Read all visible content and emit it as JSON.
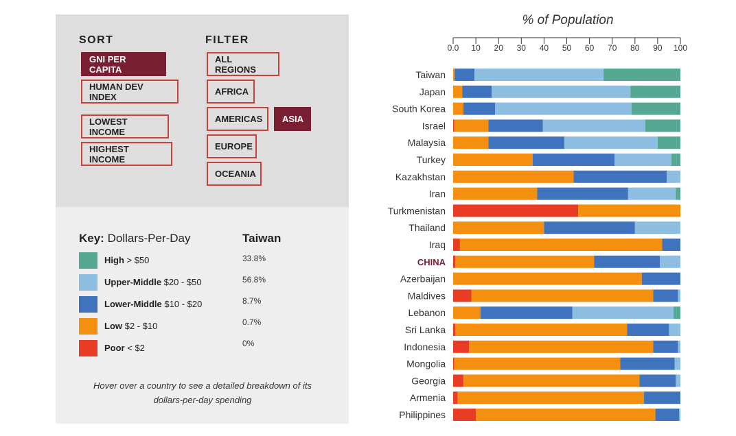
{
  "sort": {
    "heading": "SORT",
    "buttons": [
      {
        "label": "GNI PER CAPITA",
        "active": true
      },
      {
        "label": "HUMAN DEV INDEX",
        "active": false
      },
      {
        "label": "LOWEST INCOME",
        "active": false
      },
      {
        "label": "HIGHEST INCOME",
        "active": false
      }
    ]
  },
  "filter": {
    "heading": "FILTER",
    "buttons": [
      {
        "label": "ALL REGIONS",
        "active": false
      },
      {
        "label": "AFRICA",
        "active": false
      },
      {
        "label": "AMERICAS",
        "active": false
      },
      {
        "label": "ASIA",
        "active": true
      },
      {
        "label": "EUROPE",
        "active": false
      },
      {
        "label": "OCEANIA",
        "active": false
      }
    ]
  },
  "key": {
    "title_bold": "Key:",
    "title_rest": " Dollars-Per-Day",
    "selected_country": "Taiwan",
    "items": [
      {
        "name": "High",
        "range": " > $50",
        "color": "#55a891",
        "value": "33.8%"
      },
      {
        "name": "Upper-Middle",
        "range": " $20 - $50",
        "color": "#8dbde0",
        "value": "56.8%"
      },
      {
        "name": "Lower-Middle",
        "range": " $10 - $20",
        "color": "#3f73bd",
        "value": "8.7%"
      },
      {
        "name": "Low",
        "range": " $2 - $10",
        "color": "#f58f0f",
        "value": "0.7%"
      },
      {
        "name": "Poor",
        "range": " < $2",
        "color": "#e83d24",
        "value": "0%"
      }
    ],
    "hint": "Hover over a country to see a detailed breakdown of its dollars-per-day spending"
  },
  "chart_data": {
    "type": "bar",
    "orientation": "horizontal",
    "stacked": true,
    "title": "% of Population",
    "xlim": [
      0,
      100
    ],
    "xticks": [
      "0.0",
      "10",
      "20",
      "30",
      "40",
      "50",
      "60",
      "70",
      "80",
      "90",
      "100"
    ],
    "axis_position": "top",
    "highlight_category": "CHINA",
    "highlight_color": "#7a1f33",
    "categories": [
      "Taiwan",
      "Japan",
      "South Korea",
      "Israel",
      "Malaysia",
      "Turkey",
      "Kazakhstan",
      "Iran",
      "Turkmenistan",
      "Thailand",
      "Iraq",
      "CHINA",
      "Azerbaijan",
      "Maldives",
      "Lebanon",
      "Sri Lanka",
      "Indonesia",
      "Mongolia",
      "Georgia",
      "Armenia",
      "Philippines"
    ],
    "series": [
      {
        "name": "Poor",
        "color": "#e83d24",
        "values": [
          0,
          0,
          0,
          0.5,
          0,
          0,
          0,
          0,
          55,
          0,
          3,
          1,
          0,
          8,
          0,
          1,
          7,
          0.5,
          4.5,
          2,
          10
        ]
      },
      {
        "name": "Low",
        "color": "#f58f0f",
        "values": [
          0.7,
          4,
          4.5,
          15,
          15.5,
          35,
          53,
          37,
          45,
          40,
          89,
          61,
          83,
          80,
          12,
          75.5,
          81,
          73,
          77.5,
          82,
          79
        ]
      },
      {
        "name": "Lower-Middle",
        "color": "#3f73bd",
        "values": [
          8.7,
          13,
          14,
          24,
          33.5,
          36,
          41,
          40,
          1.5,
          40,
          9,
          29,
          17.5,
          11,
          40.5,
          18.5,
          11,
          24,
          16,
          16.5,
          10.5
        ]
      },
      {
        "name": "Upper-Middle",
        "color": "#8dbde0",
        "values": [
          56.8,
          61,
          60,
          45,
          41,
          25,
          7,
          21,
          0,
          20,
          1,
          10,
          0.5,
          3,
          44.5,
          5.5,
          3,
          4.5,
          3.5,
          1,
          2.5
        ]
      },
      {
        "name": "High",
        "color": "#55a891",
        "values": [
          33.8,
          22,
          22.5,
          17,
          11.5,
          5,
          0,
          3,
          0,
          2,
          0,
          0.5,
          0,
          0,
          5,
          0.5,
          0,
          0,
          0,
          0,
          0
        ]
      }
    ]
  }
}
